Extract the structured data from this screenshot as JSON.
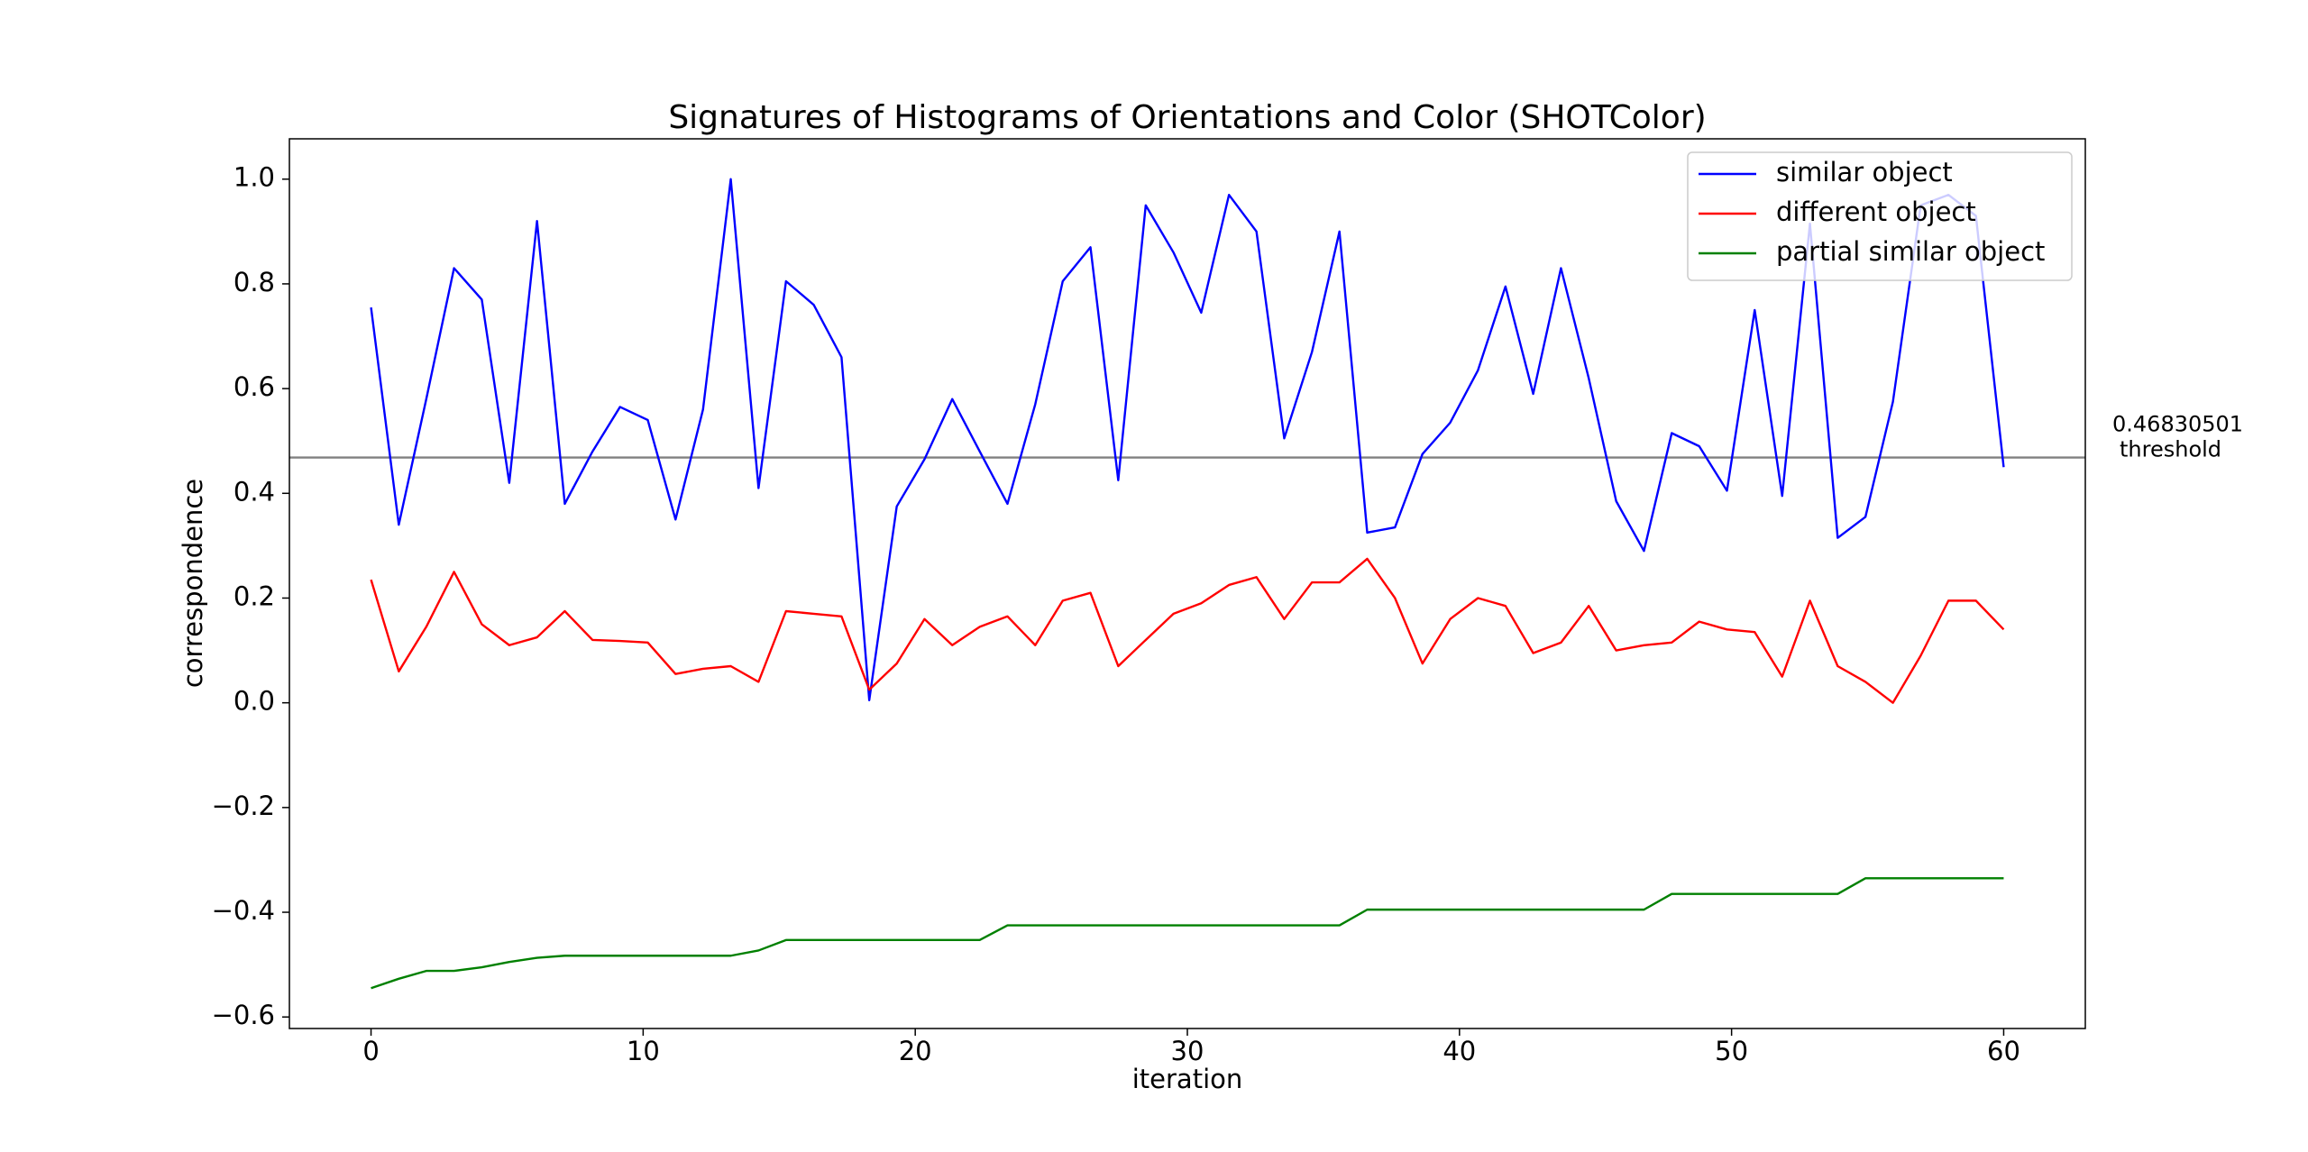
{
  "chart_data": {
    "type": "line",
    "title": "Signatures of Histograms of Orientations and Color (SHOTColor)",
    "x_label": "iteration",
    "y_label": "correspondence",
    "x": [
      0,
      1.02,
      2.03,
      3.05,
      4.07,
      5.08,
      6.1,
      7.12,
      8.14,
      9.15,
      10.17,
      11.19,
      12.2,
      13.22,
      14.24,
      15.25,
      16.27,
      17.29,
      18.31,
      19.32,
      20.34,
      21.36,
      22.37,
      23.39,
      24.41,
      25.42,
      26.44,
      27.46,
      28.47,
      29.49,
      30.51,
      31.53,
      32.54,
      33.56,
      34.58,
      35.59,
      36.61,
      37.63,
      38.64,
      39.66,
      40.68,
      41.69,
      42.71,
      43.73,
      44.75,
      45.76,
      46.78,
      47.8,
      48.81,
      49.83,
      50.85,
      51.86,
      52.88,
      53.9,
      54.92,
      55.93,
      56.95,
      57.97,
      58.98,
      60
    ],
    "series": [
      {
        "name": "similar object",
        "color": "#0000ff",
        "values": [
          0.755,
          0.34,
          0.58,
          0.83,
          0.77,
          0.42,
          0.92,
          0.38,
          0.48,
          0.565,
          0.54,
          0.35,
          0.56,
          1.0,
          0.41,
          0.805,
          0.76,
          0.66,
          0.005,
          0.375,
          0.465,
          0.58,
          0.48,
          0.38,
          0.57,
          0.805,
          0.87,
          0.425,
          0.95,
          0.86,
          0.745,
          0.97,
          0.9,
          0.505,
          0.67,
          0.9,
          0.325,
          0.335,
          0.475,
          0.535,
          0.635,
          0.795,
          0.59,
          0.83,
          0.62,
          0.385,
          0.29,
          0.515,
          0.49,
          0.405,
          0.75,
          0.395,
          0.915,
          0.315,
          0.355,
          0.575,
          0.95,
          0.97,
          0.93,
          0.45
        ]
      },
      {
        "name": "different object",
        "color": "#ff0000",
        "values": [
          0.235,
          0.06,
          0.145,
          0.25,
          0.15,
          0.11,
          0.125,
          0.175,
          0.12,
          0.118,
          0.115,
          0.055,
          0.065,
          0.07,
          0.04,
          0.175,
          0.17,
          0.165,
          0.025,
          0.075,
          0.16,
          0.11,
          0.145,
          0.165,
          0.11,
          0.195,
          0.21,
          0.07,
          0.12,
          0.17,
          0.19,
          0.225,
          0.24,
          0.16,
          0.23,
          0.23,
          0.275,
          0.2,
          0.075,
          0.16,
          0.2,
          0.185,
          0.095,
          0.115,
          0.185,
          0.1,
          0.11,
          0.115,
          0.155,
          0.14,
          0.135,
          0.05,
          0.195,
          0.07,
          0.04,
          0.0,
          0.09,
          0.195,
          0.195,
          0.14
        ]
      },
      {
        "name": "partial similar object",
        "color": "#008000",
        "values": [
          -0.545,
          -0.527,
          -0.512,
          -0.512,
          -0.505,
          -0.495,
          -0.487,
          -0.483,
          -0.483,
          -0.483,
          -0.483,
          -0.483,
          -0.483,
          -0.483,
          -0.473,
          -0.453,
          -0.453,
          -0.453,
          -0.453,
          -0.453,
          -0.453,
          -0.453,
          -0.453,
          -0.425,
          -0.425,
          -0.425,
          -0.425,
          -0.425,
          -0.425,
          -0.425,
          -0.425,
          -0.425,
          -0.425,
          -0.425,
          -0.425,
          -0.425,
          -0.395,
          -0.395,
          -0.395,
          -0.395,
          -0.395,
          -0.395,
          -0.395,
          -0.395,
          -0.395,
          -0.395,
          -0.395,
          -0.365,
          -0.365,
          -0.365,
          -0.365,
          -0.365,
          -0.365,
          -0.365,
          -0.335,
          -0.335,
          -0.335,
          -0.335,
          -0.335,
          -0.335
        ]
      }
    ],
    "threshold": {
      "value": 0.46830501,
      "label": "threshold",
      "color": "#808080"
    },
    "xlim": [
      -3,
      63
    ],
    "ylim": [
      -0.622,
      1.077
    ],
    "xticks": [
      0,
      10,
      20,
      30,
      40,
      50,
      60
    ],
    "yticks": [
      {
        "value": -0.6,
        "label": "−0.6"
      },
      {
        "value": -0.4,
        "label": "−0.4"
      },
      {
        "value": -0.2,
        "label": "−0.2"
      },
      {
        "value": 0.0,
        "label": "0.0"
      },
      0.2,
      0.4,
      0.6,
      0.8,
      {
        "value": 1.0,
        "label": "1.0"
      }
    ],
    "legend": "upper right"
  }
}
